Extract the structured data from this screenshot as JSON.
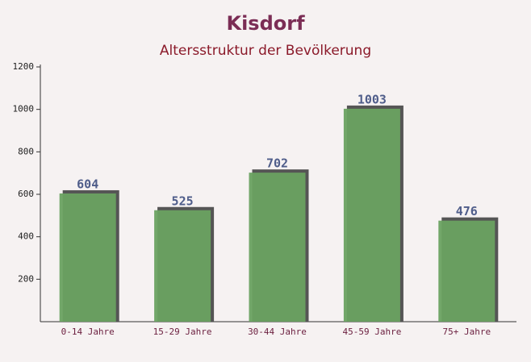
{
  "chart_data": {
    "type": "bar",
    "title": "Kisdorf",
    "subtitle": "Altersstruktur der Bevölkerung",
    "categories": [
      "0-14 Jahre",
      "15-29 Jahre",
      "30-44 Jahre",
      "45-59 Jahre",
      "75+ Jahre"
    ],
    "values": [
      604,
      525,
      702,
      1003,
      476
    ],
    "color": "#6aa261",
    "ylim": [
      0,
      1200
    ],
    "yticks": [
      200,
      400,
      600,
      800,
      1000,
      1200
    ],
    "grid": false
  }
}
